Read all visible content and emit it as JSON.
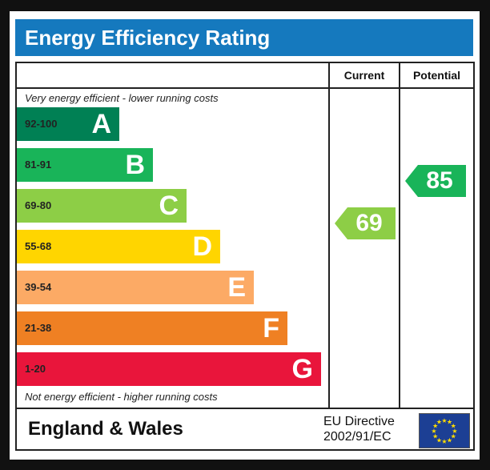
{
  "title": "Energy Efficiency Rating",
  "columns": {
    "current": "Current",
    "potential": "Potential"
  },
  "notes": {
    "top": "Very energy efficient - lower running costs",
    "bottom": "Not energy efficient - higher running costs"
  },
  "bands": [
    {
      "range": "92-100",
      "letter": "A",
      "color": "#008054"
    },
    {
      "range": "81-91",
      "letter": "B",
      "color": "#19b459"
    },
    {
      "range": "69-80",
      "letter": "C",
      "color": "#8dce46"
    },
    {
      "range": "55-68",
      "letter": "D",
      "color": "#ffd500"
    },
    {
      "range": "39-54",
      "letter": "E",
      "color": "#fcaa65"
    },
    {
      "range": "21-38",
      "letter": "F",
      "color": "#ef8023"
    },
    {
      "range": "1-20",
      "letter": "G",
      "color": "#e9153b"
    }
  ],
  "ratings": {
    "current": {
      "value": "69",
      "color": "#8dce46"
    },
    "potential": {
      "value": "85",
      "color": "#19b459"
    }
  },
  "footer": {
    "region": "England & Wales",
    "directive_line1": "EU Directive",
    "directive_line2": "2002/91/EC",
    "flag_icon": "eu-flag-icon"
  }
}
